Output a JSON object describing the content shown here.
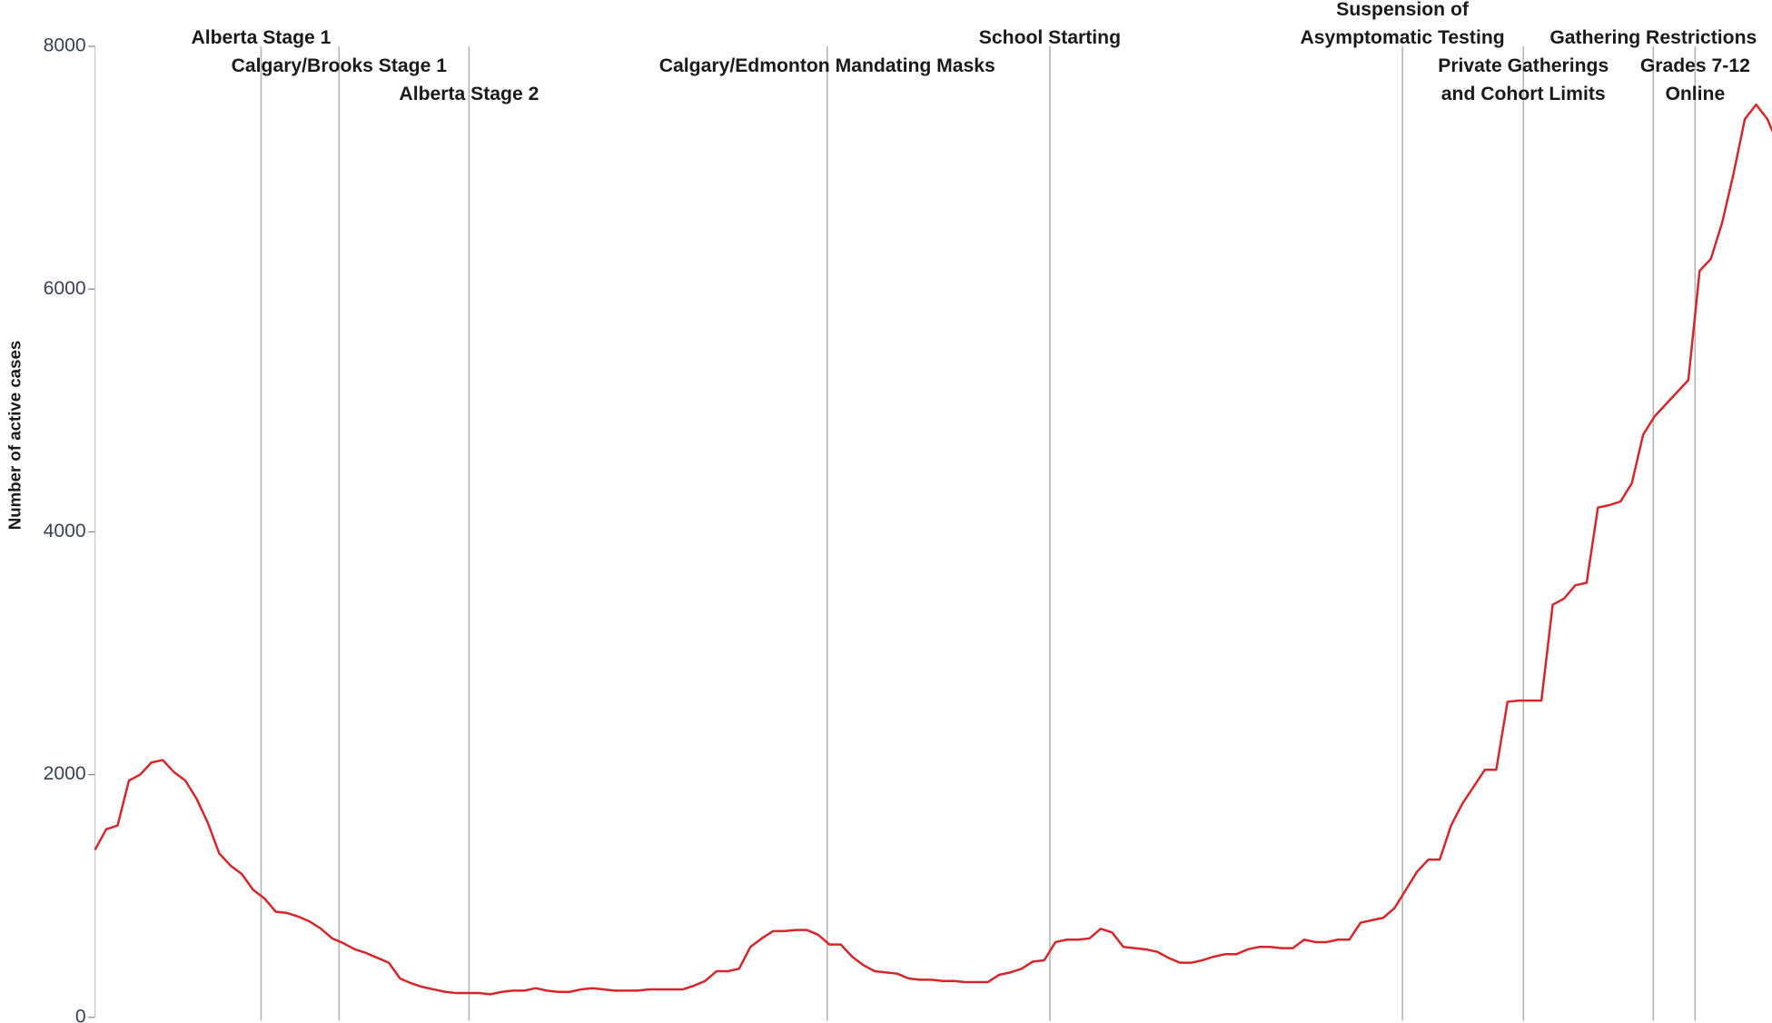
{
  "chart_data": {
    "type": "line",
    "y_label": "Number of active cases",
    "ylim": [
      0,
      8000
    ],
    "yticks": [
      0,
      2000,
      4000,
      6000,
      8000
    ],
    "xlim": [
      0,
      148
    ],
    "color": "#d6262b",
    "values": [
      1380,
      1550,
      1580,
      1950,
      2000,
      2100,
      2120,
      2020,
      1950,
      1800,
      1600,
      1350,
      1250,
      1180,
      1050,
      980,
      870,
      860,
      830,
      790,
      730,
      650,
      610,
      560,
      530,
      490,
      450,
      320,
      280,
      250,
      230,
      210,
      200,
      200,
      200,
      190,
      210,
      220,
      220,
      240,
      220,
      210,
      210,
      230,
      240,
      230,
      220,
      220,
      220,
      230,
      230,
      230,
      230,
      260,
      300,
      380,
      380,
      400,
      580,
      650,
      710,
      710,
      720,
      720,
      680,
      600,
      600,
      500,
      430,
      380,
      370,
      360,
      320,
      310,
      310,
      300,
      300,
      290,
      290,
      290,
      350,
      370,
      400,
      460,
      470,
      620,
      640,
      640,
      650,
      730,
      700,
      580,
      570,
      560,
      540,
      490,
      450,
      450,
      470,
      500,
      520,
      520,
      560,
      580,
      580,
      570,
      570,
      640,
      620,
      620,
      640,
      640,
      780,
      800,
      820,
      900,
      1050,
      1200,
      1300,
      1300,
      1580,
      1760,
      1900,
      2040,
      2040,
      2600,
      2610,
      2610,
      2610,
      3400,
      3450,
      3560,
      3580,
      4200,
      4220,
      4250,
      4400,
      4800,
      4950,
      5050,
      5150,
      5250,
      6150,
      6250,
      6550,
      6950,
      7400,
      7520,
      7400,
      7180
    ],
    "events": [
      {
        "x": 14.7,
        "label": [
          "Alberta Stage 1"
        ]
      },
      {
        "x": 21.6,
        "label": [
          "Calgary/Brooks Stage 1"
        ]
      },
      {
        "x": 33.1,
        "label": [
          "Alberta Stage 2"
        ]
      },
      {
        "x": 64.8,
        "label": [
          "Calgary/Edmonton Mandating Masks"
        ]
      },
      {
        "x": 84.5,
        "label": [
          "School Starting"
        ]
      },
      {
        "x": 115.7,
        "label": [
          "Suspension of",
          "Asymptomatic Testing"
        ]
      },
      {
        "x": 126.4,
        "label": [
          "Private Gatherings",
          "and Cohort Limits"
        ]
      },
      {
        "x": 137.9,
        "label": [
          "Gathering Restrictions"
        ]
      },
      {
        "x": 141.6,
        "label": [
          "Grades 7-12",
          "Online"
        ]
      }
    ]
  }
}
